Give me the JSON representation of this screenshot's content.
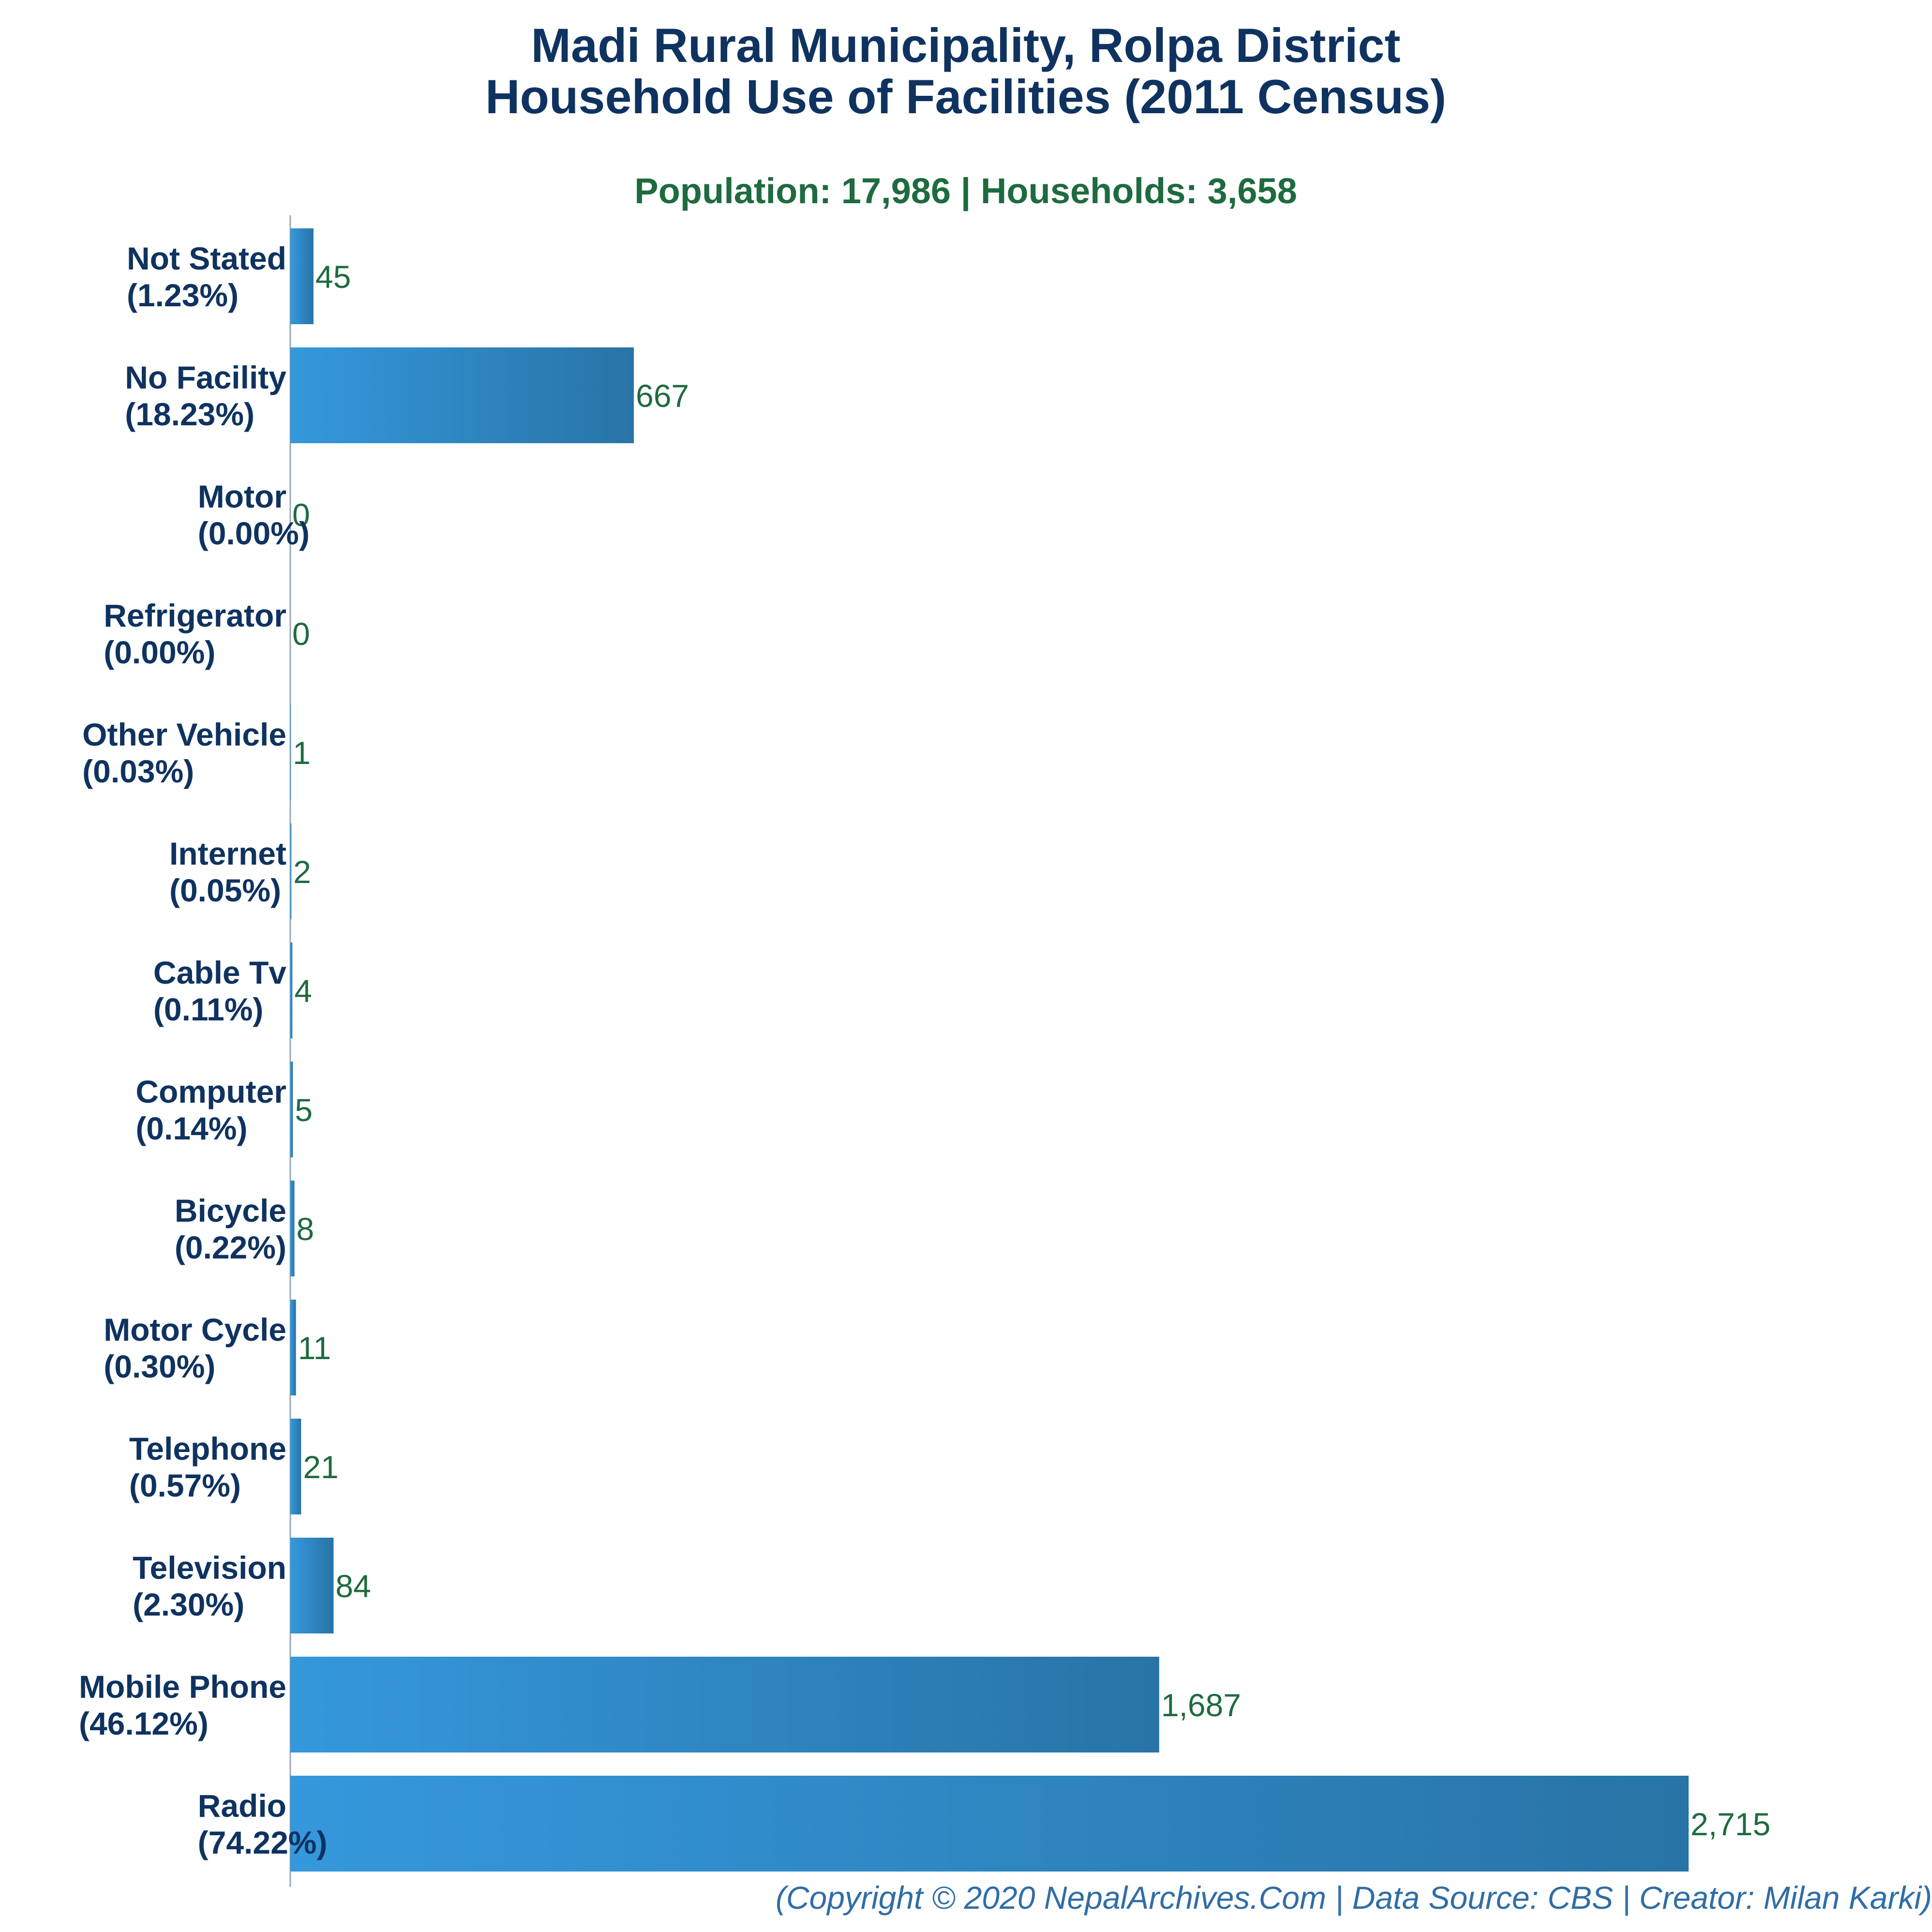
{
  "chart_data": {
    "type": "bar",
    "orientation": "horizontal",
    "title_line1": "Madi Rural Municipality, Rolpa District",
    "title_line2": "Household Use of Facilities (2011 Census)",
    "subtitle": "Population: 17,986 | Households: 3,658",
    "footer": "(Copyright © 2020 NepalArchives.Com | Data Source: CBS | Creator: Milan Karki)",
    "xlim": [
      0,
      2715
    ],
    "grid": false,
    "categories": [
      "Not Stated",
      "No Facility",
      "Motor",
      "Refrigerator",
      "Other Vehicle",
      "Internet",
      "Cable Tv",
      "Computer",
      "Bicycle",
      "Motor Cycle",
      "Telephone",
      "Television",
      "Mobile Phone",
      "Radio"
    ],
    "percents": [
      "(1.23%)",
      "(18.23%)",
      "(0.00%)",
      "(0.00%)",
      "(0.03%)",
      "(0.05%)",
      "(0.11%)",
      "(0.14%)",
      "(0.22%)",
      "(0.30%)",
      "(0.57%)",
      "(2.30%)",
      "(46.12%)",
      "(74.22%)"
    ],
    "values": [
      45,
      667,
      0,
      0,
      1,
      2,
      4,
      5,
      8,
      11,
      21,
      84,
      1687,
      2715
    ],
    "value_labels": [
      "45",
      "667",
      "0",
      "0",
      "1",
      "2",
      "4",
      "5",
      "8",
      "11",
      "21",
      "84",
      "1,687",
      "2,715"
    ],
    "colors": {
      "bar_light": "#3598dc",
      "bar_dark": "#2874a6",
      "title": "#0f3360",
      "subtitle": "#1e6b3f",
      "footer": "#2f6ea6"
    }
  }
}
